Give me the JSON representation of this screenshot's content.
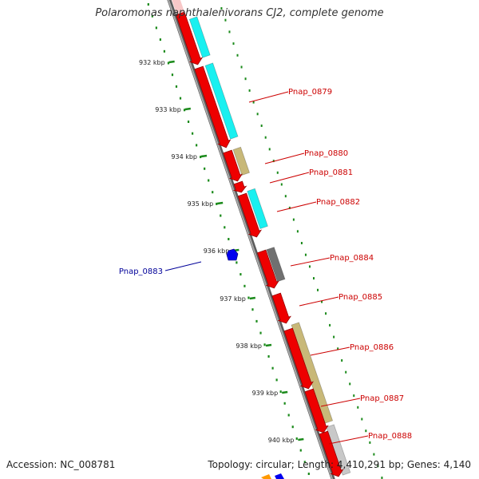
{
  "title": "Polaromonas naphthalenivorans CJ2, complete genome",
  "footer": {
    "accession": "Accession: NC_008781",
    "summary": "Topology: circular; Length: 4,410,291 bp; Genes: 4,140"
  },
  "colors": {
    "backbone": "#8a8a8a",
    "tick": "#1a8a1a",
    "forward_label": "#cc0000",
    "reverse_label": "#000099",
    "cds": "#ee0000",
    "cyan_feature": "#19f0f0",
    "khaki_feature": "#c8b878",
    "dark_feature": "#707070",
    "light_feature": "#c8c8c8",
    "reverse_gene": "#0000ee"
  },
  "ticks": [
    "932 kbp",
    "933 kbp",
    "934 kbp",
    "935 kbp",
    "936 kbp",
    "937 kbp",
    "938 kbp",
    "939 kbp",
    "940 kbp"
  ],
  "genes": [
    {
      "label": "Pnap_0879",
      "strand": "forward"
    },
    {
      "label": "Pnap_0880",
      "strand": "forward"
    },
    {
      "label": "Pnap_0881",
      "strand": "forward"
    },
    {
      "label": "Pnap_0882",
      "strand": "forward"
    },
    {
      "label": "Pnap_0883",
      "strand": "reverse"
    },
    {
      "label": "Pnap_0884",
      "strand": "forward"
    },
    {
      "label": "Pnap_0885",
      "strand": "forward"
    },
    {
      "label": "Pnap_0886",
      "strand": "forward"
    },
    {
      "label": "Pnap_0887",
      "strand": "forward"
    },
    {
      "label": "Pnap_0888",
      "strand": "forward"
    }
  ]
}
